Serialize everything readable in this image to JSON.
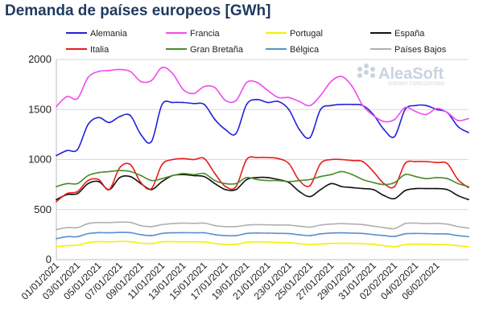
{
  "chart_data": {
    "type": "line",
    "title": "Demanda de países europeos [GWh]",
    "xlabel": "",
    "ylabel": "",
    "ylim": [
      0,
      2000
    ],
    "yticks": [
      0,
      500,
      1000,
      1500,
      2000
    ],
    "grid": true,
    "legend_position": "top",
    "x_tick_labels": [
      "01/01/2021",
      "03/01/2021",
      "05/01/2021",
      "07/01/2021",
      "09/01/2021",
      "11/01/2021",
      "13/01/2021",
      "15/01/2021",
      "17/01/2021",
      "19/01/2021",
      "21/01/2021",
      "23/01/2021",
      "25/01/2021",
      "27/01/2021",
      "29/01/2021",
      "31/01/2021",
      "02/02/2021",
      "04/02/2021",
      "06/02/2021"
    ],
    "x_tick_every": 2,
    "series": [
      {
        "name": "Alemania",
        "color": "#2222d8",
        "values": [
          1040,
          1090,
          1100,
          1350,
          1420,
          1370,
          1430,
          1440,
          1250,
          1180,
          1550,
          1570,
          1570,
          1560,
          1550,
          1400,
          1300,
          1260,
          1550,
          1600,
          1570,
          1580,
          1500,
          1300,
          1220,
          1500,
          1540,
          1550,
          1550,
          1540,
          1450,
          1300,
          1230,
          1500,
          1540,
          1540,
          1500,
          1470,
          1330,
          1270
        ]
      },
      {
        "name": "Francia",
        "color": "#f04bf0",
        "values": [
          1530,
          1630,
          1610,
          1820,
          1880,
          1890,
          1900,
          1880,
          1780,
          1790,
          1920,
          1860,
          1700,
          1660,
          1730,
          1720,
          1590,
          1590,
          1770,
          1770,
          1690,
          1620,
          1620,
          1580,
          1540,
          1640,
          1780,
          1830,
          1730,
          1540,
          1440,
          1380,
          1400,
          1520,
          1480,
          1450,
          1510,
          1470,
          1390,
          1410
        ]
      },
      {
        "name": "Portugal",
        "color": "#f2f200",
        "values": [
          130,
          140,
          145,
          170,
          180,
          178,
          182,
          180,
          165,
          160,
          178,
          180,
          178,
          178,
          176,
          162,
          152,
          152,
          172,
          178,
          176,
          172,
          168,
          160,
          150,
          156,
          162,
          163,
          162,
          160,
          152,
          140,
          130,
          150,
          155,
          153,
          152,
          150,
          140,
          130
        ]
      },
      {
        "name": "España",
        "color": "#111111",
        "values": [
          600,
          650,
          660,
          760,
          780,
          700,
          820,
          830,
          760,
          700,
          780,
          840,
          850,
          840,
          830,
          760,
          700,
          700,
          800,
          820,
          820,
          800,
          770,
          680,
          630,
          700,
          760,
          730,
          720,
          710,
          700,
          640,
          610,
          690,
          710,
          710,
          710,
          700,
          640,
          600
        ]
      },
      {
        "name": "Italia",
        "color": "#e81c1c",
        "values": [
          580,
          660,
          680,
          790,
          800,
          700,
          920,
          950,
          770,
          710,
          950,
          1000,
          1010,
          1000,
          1010,
          860,
          730,
          730,
          1000,
          1020,
          1020,
          1010,
          960,
          790,
          740,
          960,
          1000,
          1000,
          990,
          980,
          880,
          760,
          730,
          960,
          980,
          980,
          970,
          960,
          800,
          720
        ]
      },
      {
        "name": "Gran Bretaña",
        "color": "#4a8a2a",
        "values": [
          730,
          760,
          760,
          840,
          870,
          880,
          890,
          880,
          840,
          790,
          810,
          840,
          860,
          850,
          860,
          790,
          760,
          760,
          820,
          800,
          790,
          790,
          780,
          790,
          800,
          830,
          850,
          880,
          850,
          800,
          770,
          750,
          770,
          850,
          830,
          810,
          820,
          810,
          760,
          730
        ]
      },
      {
        "name": "Bélgica",
        "color": "#5a8fd0",
        "values": [
          210,
          230,
          230,
          260,
          270,
          268,
          272,
          270,
          250,
          240,
          262,
          268,
          270,
          268,
          268,
          250,
          240,
          240,
          262,
          266,
          265,
          263,
          260,
          248,
          240,
          258,
          266,
          268,
          265,
          262,
          250,
          240,
          232,
          258,
          262,
          260,
          258,
          256,
          240,
          230
        ]
      },
      {
        "name": "Países Bajos",
        "color": "#b0b0b0",
        "values": [
          300,
          320,
          320,
          360,
          370,
          370,
          375,
          372,
          340,
          330,
          350,
          360,
          365,
          362,
          365,
          340,
          330,
          330,
          345,
          350,
          348,
          346,
          345,
          335,
          325,
          345,
          355,
          360,
          356,
          350,
          335,
          320,
          310,
          360,
          365,
          360,
          362,
          355,
          330,
          315
        ]
      }
    ]
  },
  "watermark": {
    "brand": "AleaSoft",
    "tagline": "ENERGY FORECASTING"
  }
}
